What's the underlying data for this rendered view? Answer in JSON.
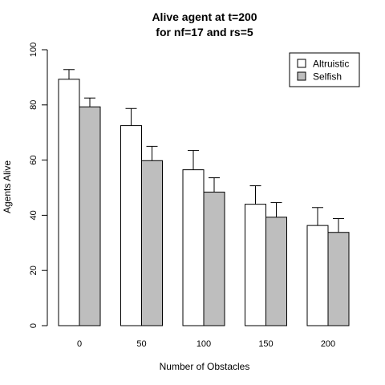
{
  "chart_data": {
    "type": "bar",
    "title_line1": "Alive agent at t=200",
    "title_line2": "for nf=17 and rs=5",
    "xlabel": "Number of Obstacles",
    "ylabel": "Agents Alive",
    "categories": [
      "0",
      "50",
      "100",
      "150",
      "200"
    ],
    "ylim": [
      0,
      100
    ],
    "yticks": [
      0,
      20,
      40,
      60,
      80,
      100
    ],
    "series": [
      {
        "name": "Altruistic",
        "color": "#ffffff",
        "values": [
          89.3,
          72.5,
          56.5,
          44.0,
          36.3
        ],
        "errors": [
          3.5,
          6.2,
          7.0,
          6.7,
          6.5
        ]
      },
      {
        "name": "Selfish",
        "color": "#bebebe",
        "values": [
          79.3,
          59.8,
          48.4,
          39.3,
          33.8
        ],
        "errors": [
          3.2,
          5.2,
          5.2,
          5.3,
          5.0
        ]
      }
    ],
    "legend_position": "top-right",
    "grid": false
  }
}
